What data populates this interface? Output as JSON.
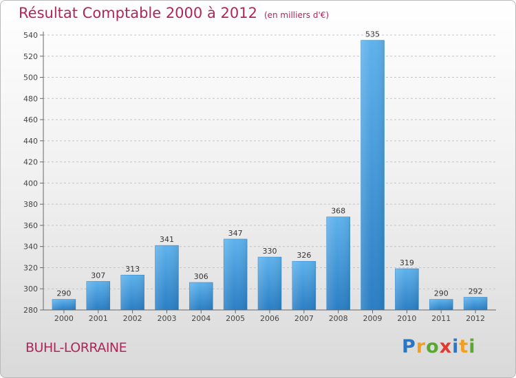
{
  "chart_data": {
    "type": "bar",
    "title": "Résultat Comptable 2000 à 2012",
    "subtitle": "(en milliers d'€)",
    "categories": [
      "2000",
      "2001",
      "2002",
      "2003",
      "2004",
      "2005",
      "2006",
      "2007",
      "2008",
      "2009",
      "2010",
      "2011",
      "2012"
    ],
    "values": [
      290,
      307,
      313,
      341,
      306,
      347,
      330,
      326,
      368,
      535,
      319,
      290,
      292
    ],
    "ylim": [
      280,
      540
    ],
    "yticks": [
      280,
      300,
      320,
      340,
      360,
      380,
      400,
      420,
      440,
      460,
      480,
      500,
      520,
      540
    ],
    "xlabel": "",
    "ylabel": "",
    "grid": "horizontal dashed",
    "bar_color": "#3e95d8"
  },
  "footer": {
    "place": "BUHL-LORRAINE",
    "logo_letters": [
      "P",
      "r",
      "o",
      "x",
      "i",
      "t",
      "i"
    ],
    "logo_colors": [
      "#2a76c6",
      "#f0a020",
      "#5aa830",
      "#e03a30",
      "#2a76c6",
      "#f0a020",
      "#5aa830"
    ]
  }
}
